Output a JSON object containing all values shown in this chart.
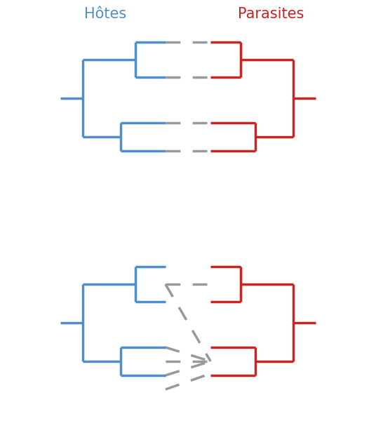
{
  "title": "Hôtes",
  "title2": "Parasites",
  "blue_color": "#4D8FCC",
  "red_color": "#CC2222",
  "gray_color": "#999999",
  "lw": 2.5,
  "fig_width": 5.36,
  "fig_height": 6.2,
  "dpi": 100
}
